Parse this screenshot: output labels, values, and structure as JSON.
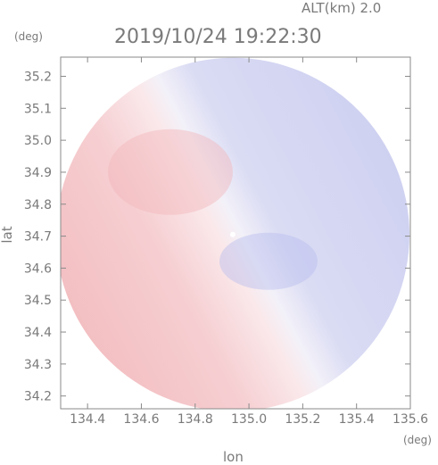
{
  "chart_data": {
    "type": "heatmap",
    "title": "2019/10/24 19:22:30",
    "subtitle": "ALT(km) 2.0",
    "xlabel": "lon",
    "ylabel": "lat",
    "x_unit": "(deg)",
    "y_unit": "(deg)",
    "xlim": [
      134.3,
      135.6
    ],
    "ylim": [
      34.16,
      35.26
    ],
    "xticks": [
      "134.4",
      "134.6",
      "134.8",
      "135.0",
      "135.2",
      "135.4",
      "135.6"
    ],
    "yticks": [
      "35.2",
      "35.1",
      "35.0",
      "34.9",
      "34.8",
      "34.7",
      "34.6",
      "34.5",
      "34.4",
      "34.3",
      "34.2"
    ],
    "radar_center": {
      "lon": 134.94,
      "lat": 34.705
    },
    "grid": false,
    "colormap": {
      "positive": "#f08080",
      "zero": "#f8f6fa",
      "negative": "#8080f0"
    }
  }
}
